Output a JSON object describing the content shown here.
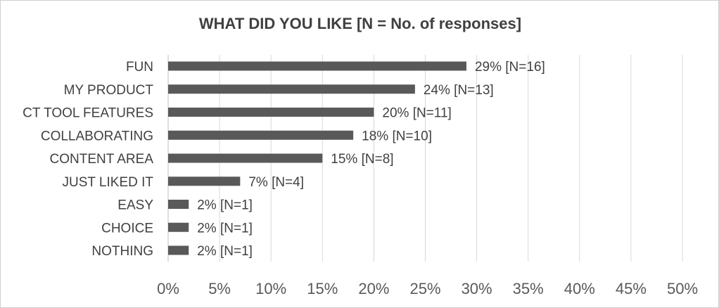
{
  "chart_data": {
    "type": "bar",
    "orientation": "horizontal",
    "title": "WHAT DID YOU LIKE [N = No. of responses]",
    "categories": [
      "FUN",
      "MY PRODUCT",
      "CT TOOL FEATURES",
      "COLLABORATING",
      "CONTENT AREA",
      "JUST LIKED IT",
      "EASY",
      "CHOICE",
      "NOTHING"
    ],
    "values": [
      29,
      24,
      20,
      18,
      15,
      7,
      2,
      2,
      2
    ],
    "counts": [
      16,
      13,
      11,
      10,
      8,
      4,
      1,
      1,
      1
    ],
    "data_labels": [
      "29% [N=16]",
      "24% [N=13]",
      "20% [N=11]",
      "18% [N=10]",
      "15% [N=8]",
      "7% [N=4]",
      "2% [N=1]",
      "2% [N=1]",
      "2% [N=1]"
    ],
    "xlim": [
      0,
      50
    ],
    "xticks": [
      0,
      5,
      10,
      15,
      20,
      25,
      30,
      35,
      40,
      45,
      50
    ],
    "xtick_labels": [
      "0%",
      "5%",
      "10%",
      "15%",
      "20%",
      "25%",
      "30%",
      "35%",
      "40%",
      "45%",
      "50%"
    ],
    "grid": "vertical",
    "legend": "none",
    "bar_color": "#595959",
    "grid_color": "#d9d9d9",
    "text_color": "#404040"
  }
}
